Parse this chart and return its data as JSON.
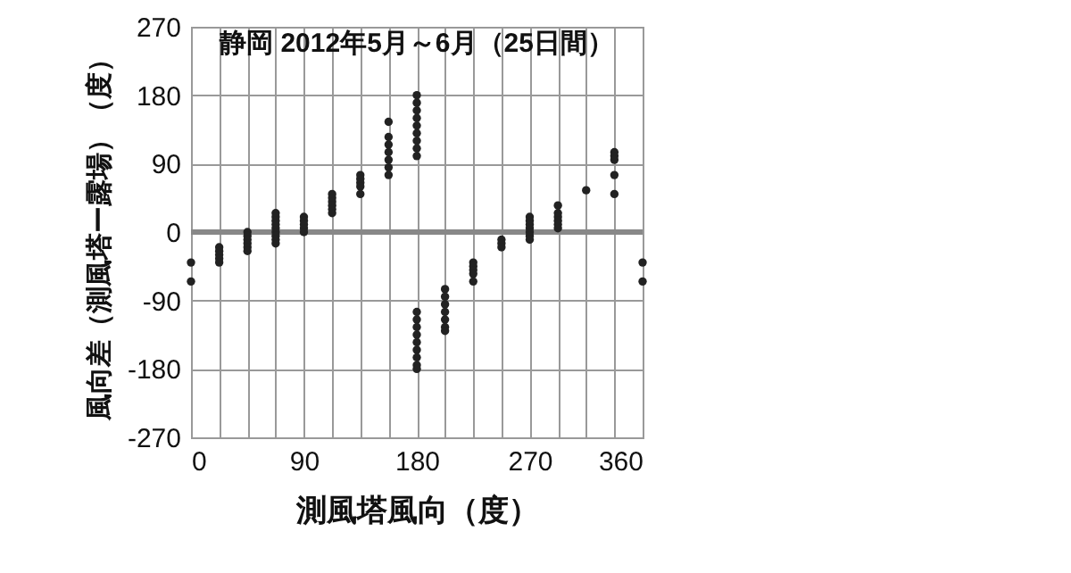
{
  "chart_data": {
    "type": "scatter",
    "title": "静岡 2012年5月～6月（25日間）",
    "xlabel": "測風塔風向（度）",
    "ylabel": "風向差（測風塔ー露場）（度）",
    "x": [
      0,
      0,
      22.5,
      22.5,
      22.5,
      22.5,
      22.5,
      45,
      45,
      45,
      45,
      45,
      45,
      67.5,
      67.5,
      67.5,
      67.5,
      67.5,
      67.5,
      67.5,
      67.5,
      67.5,
      90,
      90,
      90,
      90,
      90,
      112.5,
      112.5,
      112.5,
      112.5,
      112.5,
      112.5,
      135,
      135,
      135,
      135,
      135,
      157.5,
      157.5,
      157.5,
      157.5,
      157.5,
      157.5,
      157.5,
      180,
      180,
      180,
      180,
      180,
      180,
      180,
      180,
      180,
      180,
      180,
      180,
      180,
      180,
      180,
      180,
      180,
      180,
      202.5,
      202.5,
      202.5,
      202.5,
      202.5,
      202.5,
      202.5,
      225,
      225,
      225,
      225,
      225,
      247.5,
      247.5,
      247.5,
      270,
      270,
      270,
      270,
      270,
      270,
      270,
      292.5,
      292.5,
      292.5,
      292.5,
      292.5,
      292.5,
      315,
      337.5,
      337.5,
      337.5,
      337.5,
      337.5,
      360,
      360
    ],
    "values": [
      -40,
      -65,
      -20,
      -25,
      -30,
      -35,
      -40,
      0,
      -5,
      -10,
      -15,
      -20,
      -25,
      25,
      20,
      15,
      10,
      5,
      0,
      -5,
      -10,
      -15,
      20,
      15,
      10,
      5,
      0,
      50,
      45,
      40,
      35,
      30,
      25,
      75,
      70,
      65,
      60,
      50,
      145,
      125,
      115,
      105,
      95,
      85,
      75,
      180,
      170,
      160,
      150,
      140,
      130,
      120,
      110,
      100,
      -105,
      -115,
      -125,
      -135,
      -145,
      -155,
      -165,
      -175,
      -180,
      -75,
      -85,
      -95,
      -105,
      -115,
      -125,
      -130,
      -40,
      -45,
      -50,
      -55,
      -65,
      -10,
      -15,
      -20,
      20,
      15,
      10,
      5,
      0,
      -5,
      -10,
      35,
      25,
      20,
      15,
      10,
      5,
      55,
      105,
      100,
      95,
      75,
      50,
      -40,
      -65
    ],
    "color": "#222222",
    "marker": "circle",
    "xlim": [
      0,
      360
    ],
    "xticks": [
      0,
      {
        "value": 22.5,
        "label": null
      },
      {
        "value": 45,
        "label": null
      },
      {
        "value": 67.5,
        "label": null
      },
      90,
      {
        "value": 112.5,
        "label": null
      },
      {
        "value": 135,
        "label": null
      },
      {
        "value": 157.5,
        "label": null
      },
      180,
      {
        "value": 202.5,
        "label": null
      },
      {
        "value": 225,
        "label": null
      },
      {
        "value": 247.5,
        "label": null
      },
      270,
      {
        "value": 292.5,
        "label": null
      },
      {
        "value": 315,
        "label": null
      },
      {
        "value": 337.5,
        "label": null
      },
      360
    ],
    "ylim": [
      -270,
      270
    ],
    "yticks": [
      -270,
      -180,
      -90,
      0,
      90,
      180,
      270
    ],
    "grid": true,
    "ref_lines": [
      {
        "axis": "y",
        "value": 0,
        "color": "#888888"
      }
    ]
  }
}
